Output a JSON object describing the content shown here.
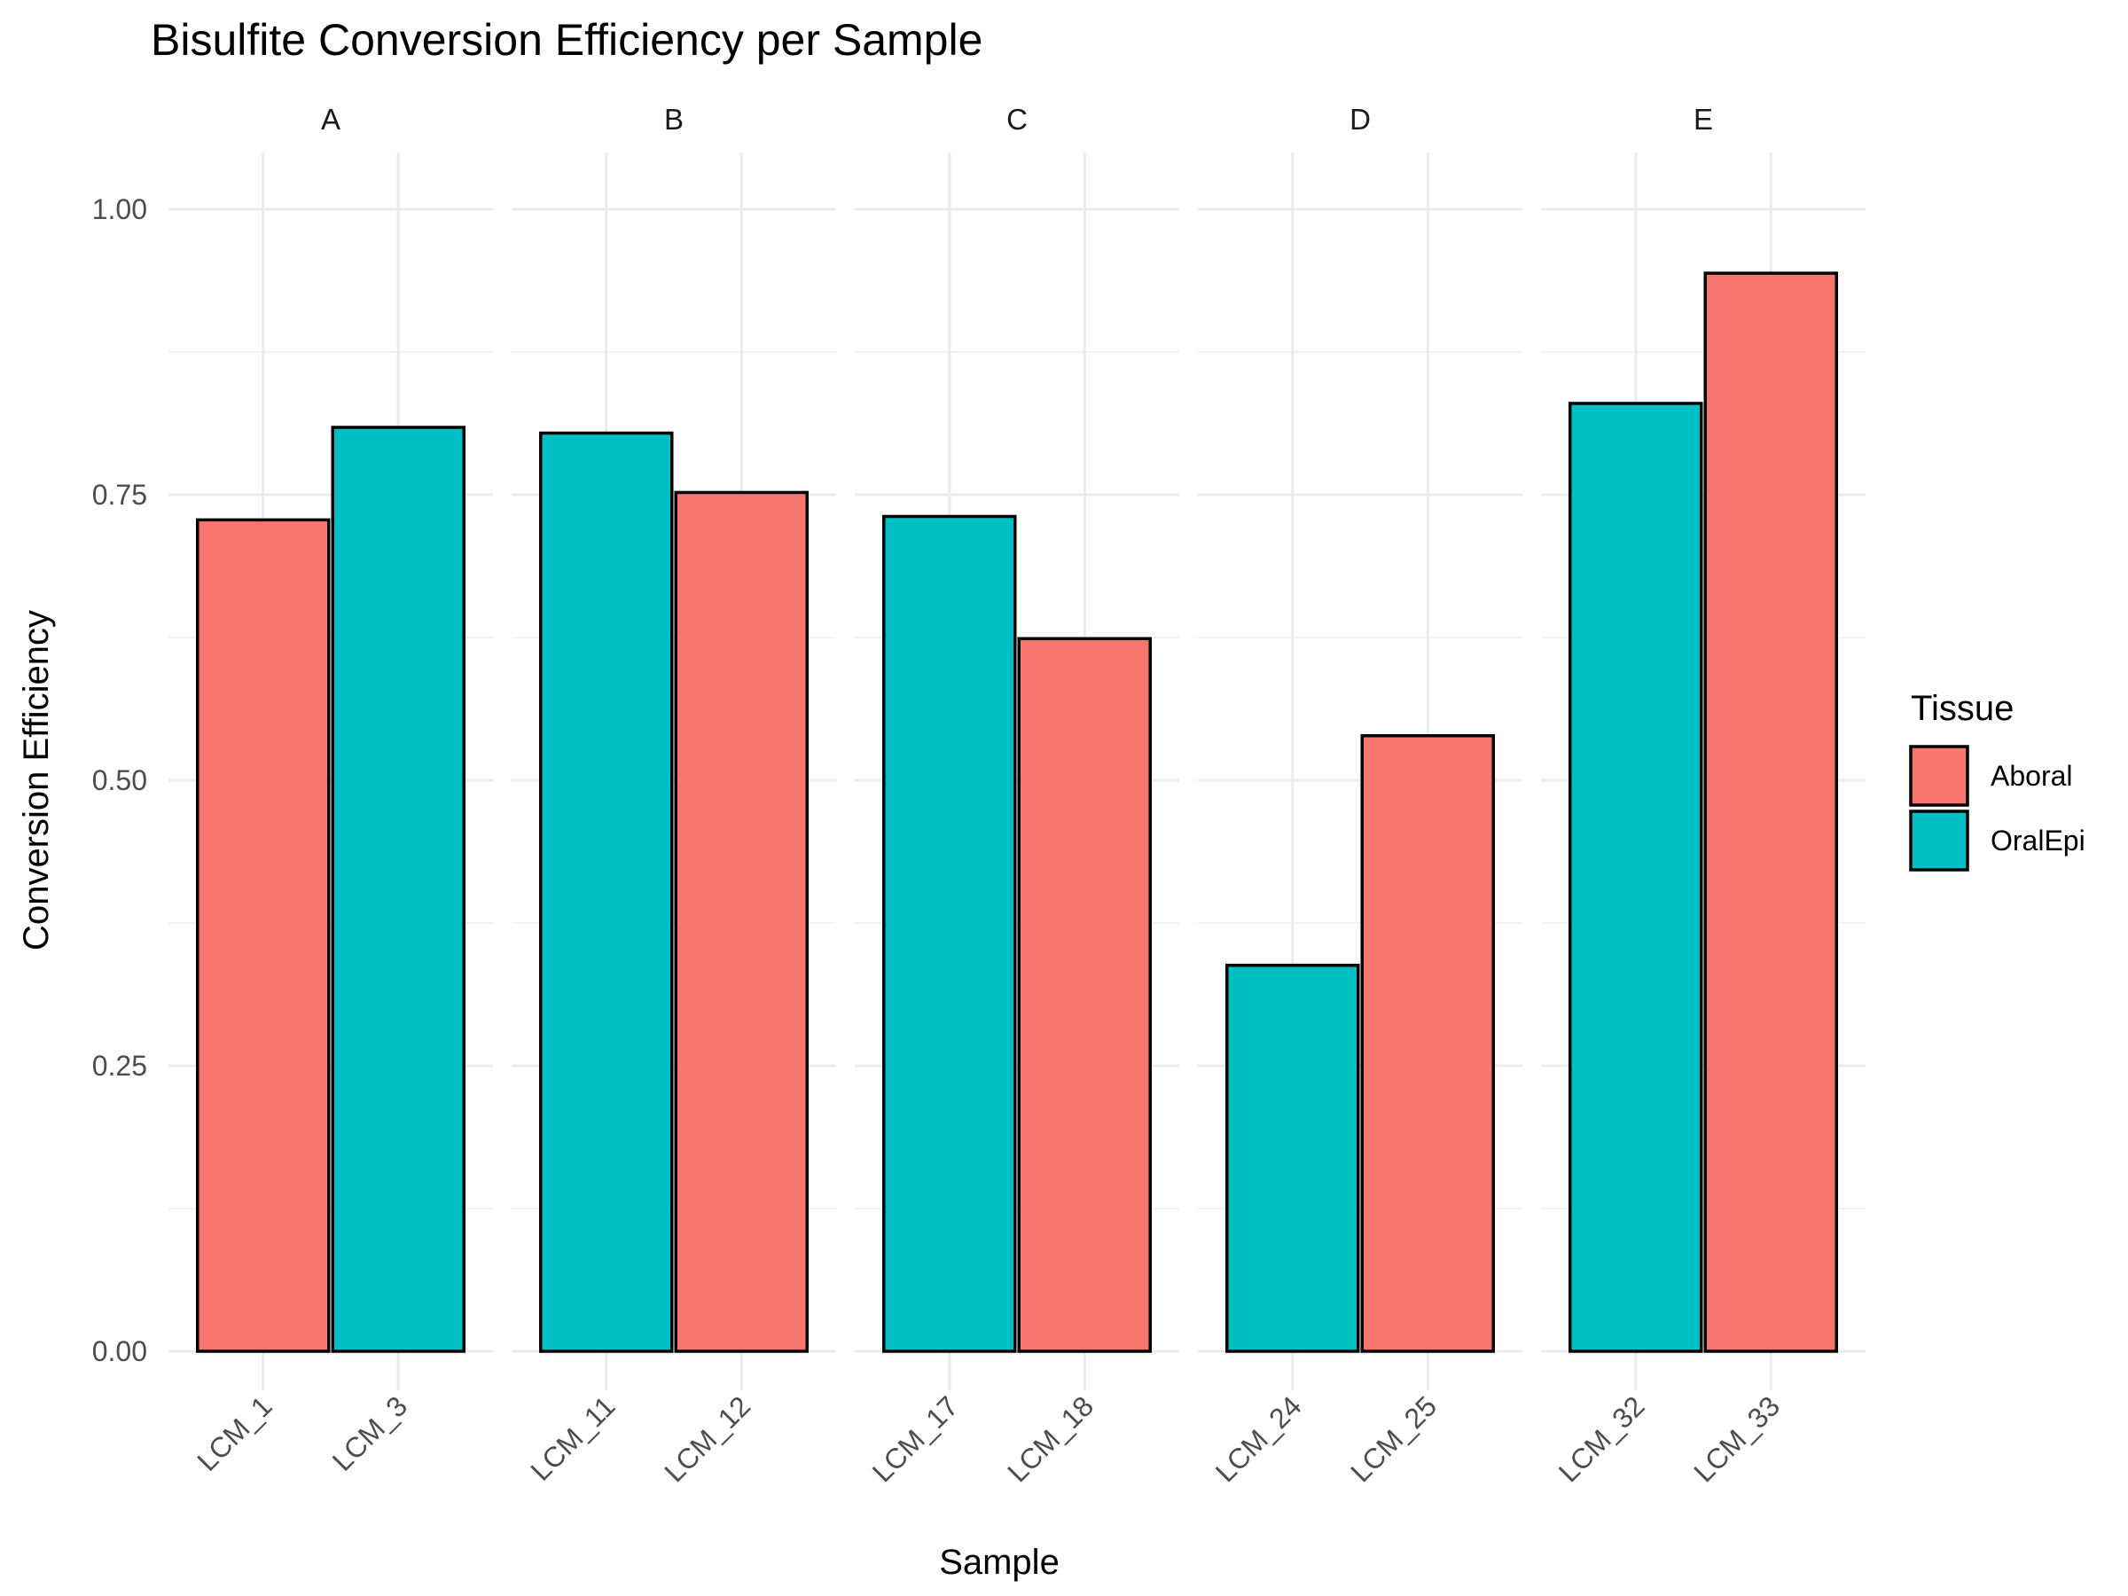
{
  "chart_data": {
    "type": "bar",
    "title": "Bisulfite Conversion Efficiency per Sample",
    "xlabel": "Sample",
    "ylabel": "Conversion Efficiency",
    "ylim": [
      0,
      1.05
    ],
    "yticks": [
      "0.00",
      "0.25",
      "0.50",
      "0.75",
      "1.00"
    ],
    "grid": true,
    "legend": {
      "title": "Tissue",
      "position": "right",
      "items": [
        {
          "label": "Aboral",
          "color": "#F8766D"
        },
        {
          "label": "OralEpi",
          "color": "#00BFC4"
        }
      ]
    },
    "facets": [
      {
        "label": "A",
        "bars": [
          {
            "sample": "LCM_1",
            "tissue": "Aboral",
            "value": 0.728
          },
          {
            "sample": "LCM_3",
            "tissue": "OralEpi",
            "value": 0.809
          }
        ]
      },
      {
        "label": "B",
        "bars": [
          {
            "sample": "LCM_11",
            "tissue": "OralEpi",
            "value": 0.804
          },
          {
            "sample": "LCM_12",
            "tissue": "Aboral",
            "value": 0.752
          }
        ]
      },
      {
        "label": "C",
        "bars": [
          {
            "sample": "LCM_17",
            "tissue": "OralEpi",
            "value": 0.731
          },
          {
            "sample": "LCM_18",
            "tissue": "Aboral",
            "value": 0.624
          }
        ]
      },
      {
        "label": "D",
        "bars": [
          {
            "sample": "LCM_24",
            "tissue": "OralEpi",
            "value": 0.338
          },
          {
            "sample": "LCM_25",
            "tissue": "Aboral",
            "value": 0.539
          }
        ]
      },
      {
        "label": "E",
        "bars": [
          {
            "sample": "LCM_32",
            "tissue": "OralEpi",
            "value": 0.83
          },
          {
            "sample": "LCM_33",
            "tissue": "Aboral",
            "value": 0.944
          }
        ]
      }
    ]
  }
}
